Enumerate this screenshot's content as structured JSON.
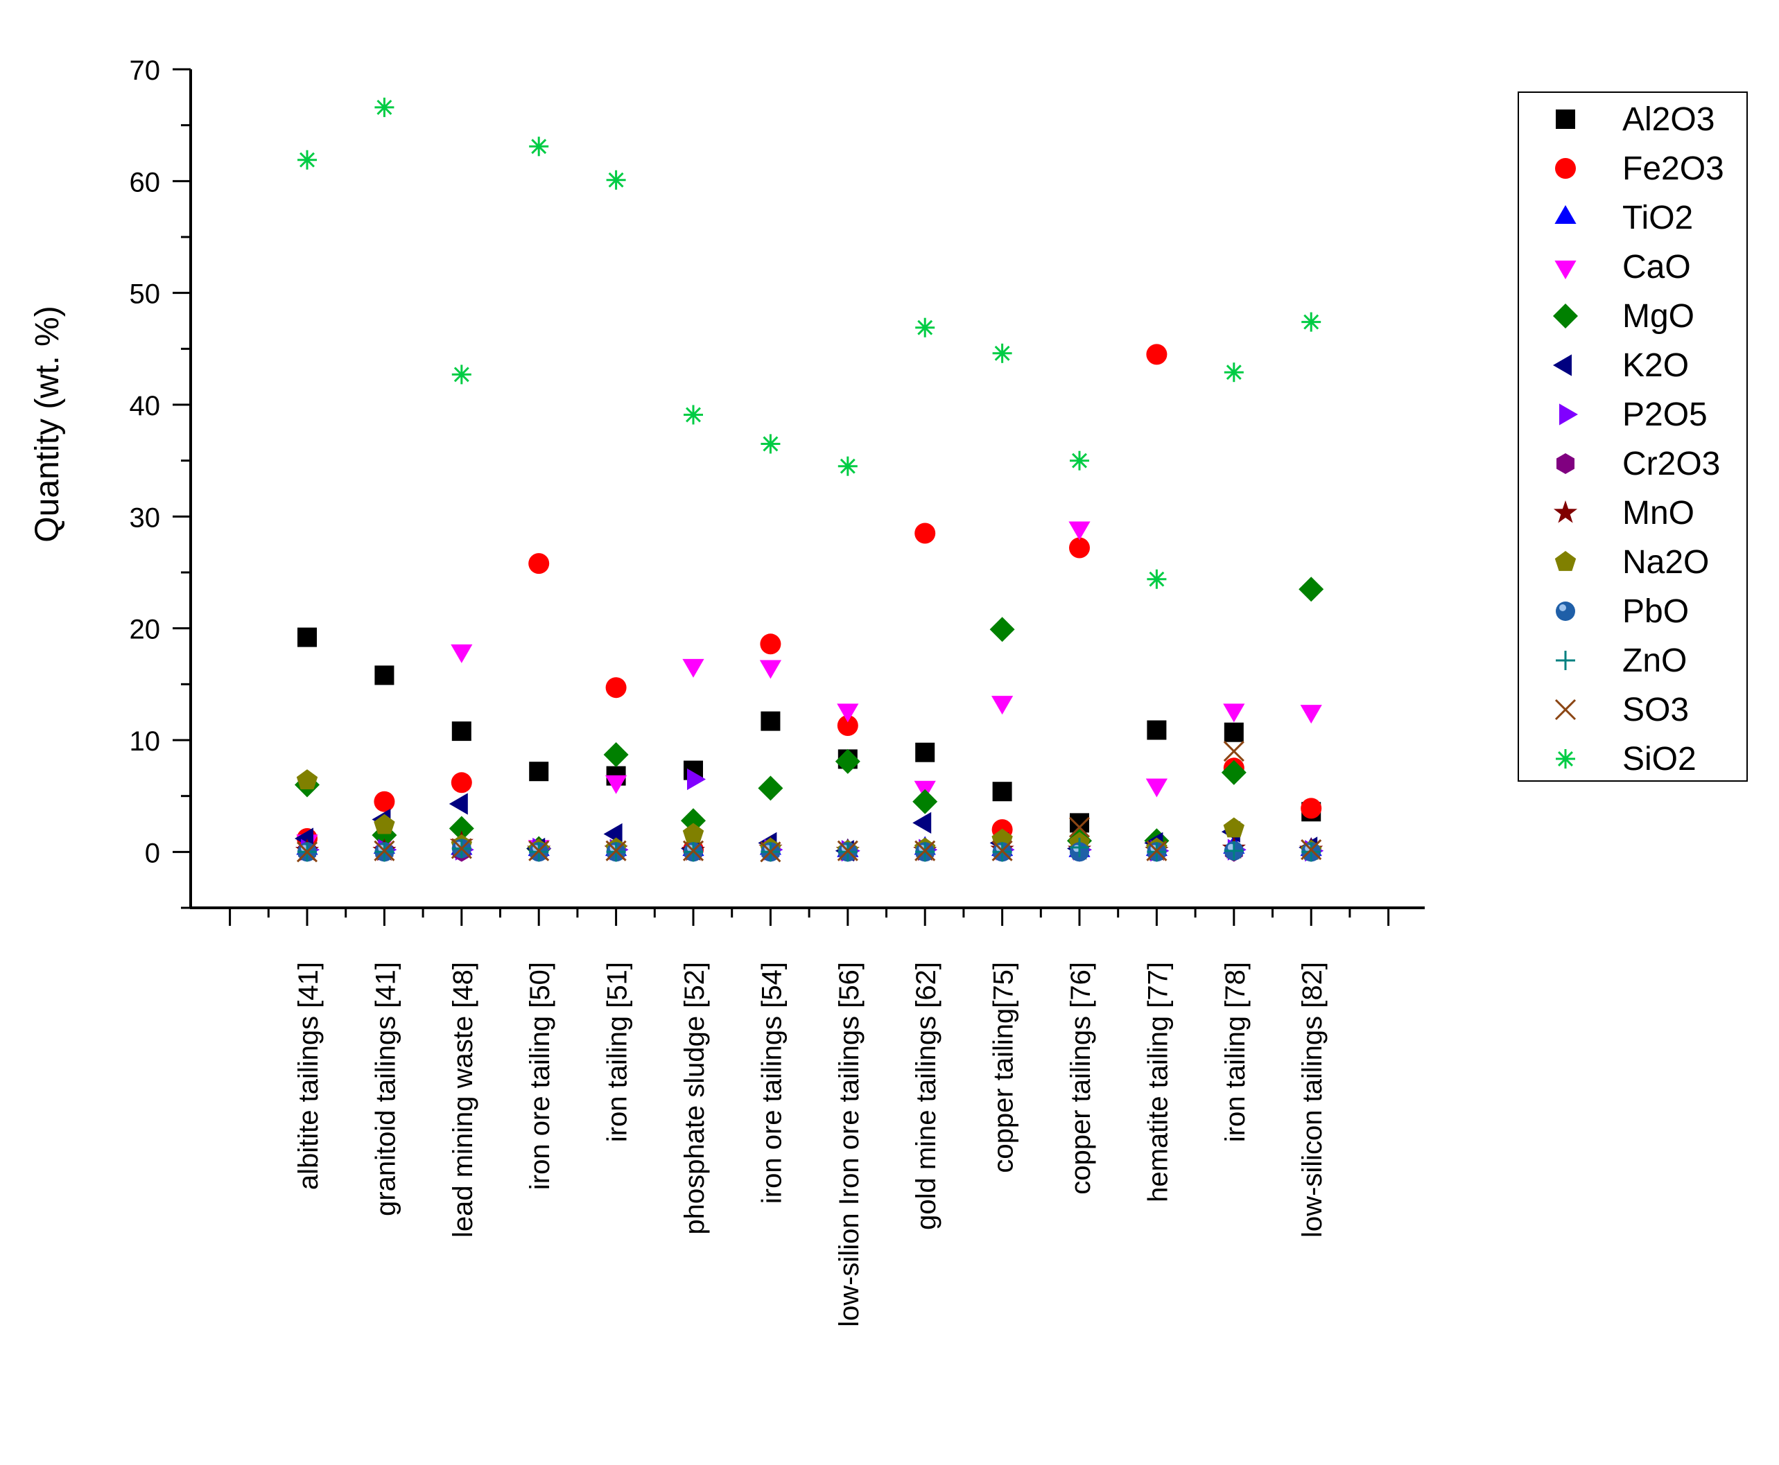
{
  "chart_data": {
    "type": "scatter",
    "title": "",
    "xlabel": "",
    "ylabel": "Quantity (wt. %)",
    "ylim": [
      -5,
      70
    ],
    "yticks": [
      0,
      10,
      20,
      30,
      40,
      50,
      60,
      70
    ],
    "grid": false,
    "legend_position": "top-right",
    "categories": [
      "albitite tailings [41]",
      "granitoid tailings [41]",
      "lead mining waste [48]",
      "iron ore tailing [50]",
      "iron tailing [51]",
      "phosphate sludge [52]",
      "iron ore tailings  [54]",
      "low-silion Iron ore tailings  [56]",
      "gold mine tailings [62]",
      "copper  tailing[75]",
      "copper tailings [76]",
      "hematite tailing [77]",
      "iron tailing [78]",
      "low-silicon tailings [82]"
    ],
    "series": [
      {
        "name": "Al2O3",
        "marker": "square",
        "color": "#000000",
        "values": [
          19.2,
          15.8,
          10.8,
          7.2,
          6.8,
          7.3,
          11.7,
          8.3,
          8.9,
          5.4,
          2.6,
          10.9,
          10.7,
          3.6
        ]
      },
      {
        "name": "Fe2O3",
        "marker": "circle",
        "color": "#ff0000",
        "values": [
          1.2,
          4.5,
          6.2,
          25.8,
          14.7,
          0.2,
          18.6,
          11.3,
          28.5,
          2.0,
          27.2,
          44.5,
          7.5,
          3.9
        ]
      },
      {
        "name": "TiO2",
        "marker": "triangle-up",
        "color": "#0000ff",
        "values": [
          0.3,
          0.4,
          0.3,
          0.2,
          0.2,
          0.2,
          0.3,
          0.1,
          0.3,
          0.2,
          0.1,
          0.2,
          0.4,
          0.2
        ]
      },
      {
        "name": "CaO",
        "marker": "triangle-down",
        "color": "#ff00ff",
        "values": [
          1.0,
          1.0,
          18.0,
          0.5,
          6.3,
          16.7,
          16.6,
          12.7,
          5.8,
          13.4,
          29.0,
          6.0,
          12.7,
          12.6
        ]
      },
      {
        "name": "MgO",
        "marker": "diamond",
        "color": "#008000",
        "values": [
          6.0,
          1.5,
          2.1,
          0.3,
          8.7,
          2.8,
          5.7,
          8.1,
          4.5,
          19.9,
          1.0,
          1.0,
          7.1,
          23.5
        ]
      },
      {
        "name": "K2O",
        "marker": "triangle-left",
        "color": "#000080",
        "values": [
          1.2,
          2.9,
          4.3,
          0.3,
          1.6,
          0.3,
          0.8,
          0.1,
          2.6,
          0.8,
          0.3,
          0.8,
          1.8,
          0.4
        ]
      },
      {
        "name": "P2O5",
        "marker": "triangle-right",
        "color": "#8000ff",
        "values": [
          0.2,
          0.2,
          0.2,
          0.3,
          0.2,
          6.5,
          0.2,
          0.1,
          0.2,
          0.2,
          0.2,
          0.1,
          0.2,
          0.1
        ]
      },
      {
        "name": "Cr2O3",
        "marker": "hexagon",
        "color": "#800080",
        "values": [
          0.05,
          0.05,
          0.05,
          0.05,
          0.05,
          0.05,
          0.05,
          0.05,
          0.05,
          0.05,
          0.05,
          0.05,
          0.05,
          0.05
        ]
      },
      {
        "name": "MnO",
        "marker": "star",
        "color": "#800000",
        "values": [
          0.1,
          0.1,
          0.8,
          0.2,
          0.2,
          0.1,
          0.3,
          0.1,
          0.1,
          0.2,
          0.2,
          0.1,
          0.3,
          0.2
        ]
      },
      {
        "name": "Na2O",
        "marker": "pentagon",
        "color": "#808000",
        "values": [
          6.4,
          2.4,
          0.6,
          0.2,
          0.3,
          1.6,
          0.3,
          0.1,
          0.3,
          1.1,
          0.8,
          0.3,
          2.1,
          0.1
        ]
      },
      {
        "name": "PbO",
        "marker": "sphere",
        "color": "#1f5fa8",
        "values": [
          0.0,
          0.0,
          0.3,
          0.0,
          0.0,
          0.0,
          0.0,
          0.0,
          0.0,
          0.0,
          0.0,
          0.0,
          0.1,
          0.0
        ]
      },
      {
        "name": "ZnO",
        "marker": "plus",
        "color": "#008080",
        "values": [
          0.0,
          0.0,
          0.3,
          0.0,
          0.0,
          0.0,
          0.0,
          0.0,
          0.0,
          0.0,
          0.4,
          0.0,
          0.1,
          0.0
        ]
      },
      {
        "name": "SO3",
        "marker": "x",
        "color": "#8b4513",
        "values": [
          0.0,
          0.1,
          0.3,
          0.1,
          0.1,
          0.1,
          0.0,
          0.1,
          0.1,
          0.1,
          2.2,
          0.1,
          9.0,
          0.2
        ]
      },
      {
        "name": "SiO2",
        "marker": "asterisk",
        "color": "#00cc44",
        "values": [
          61.9,
          66.6,
          42.7,
          63.1,
          60.1,
          39.1,
          36.5,
          34.5,
          46.9,
          44.6,
          35.0,
          24.4,
          42.9,
          47.4
        ]
      }
    ]
  }
}
